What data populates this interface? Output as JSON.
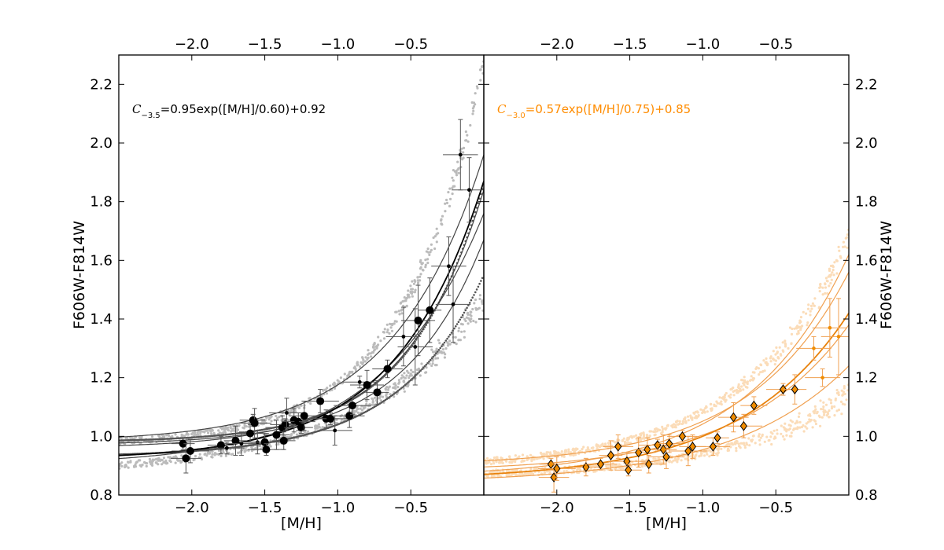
{
  "chart_data": [
    {
      "type": "scatter",
      "panel": "left",
      "xlabel": "[M/H]",
      "ylabel": "F606W-F814W",
      "xlim": [
        -2.5,
        0.0
      ],
      "ylim": [
        0.8,
        2.3
      ],
      "xticks": [
        -2.0,
        -1.5,
        -1.0,
        -0.5
      ],
      "xtick_labels": [
        "−2.0",
        "−1.5",
        "−1.0",
        "−0.5"
      ],
      "yticks": [
        0.8,
        1.0,
        1.2,
        1.4,
        1.6,
        1.8,
        2.0,
        2.2
      ],
      "ytick_labels": [
        "0.8",
        "1.0",
        "1.2",
        "1.4",
        "1.6",
        "1.8",
        "2.0",
        "2.2"
      ],
      "annotation": {
        "symbol": "C",
        "subscript": "−3.5",
        "text": "=0.95exp([M/H]/0.60)+0.92",
        "color": "#000000"
      },
      "fit": {
        "a": 0.95,
        "b": 0.6,
        "c": 0.92,
        "color": "#000000"
      },
      "aux_curves": [
        {
          "a": 0.88,
          "b": 0.54,
          "c": 0.96,
          "color": "#444444"
        },
        {
          "a": 0.98,
          "b": 0.62,
          "c": 0.98,
          "color": "#444444"
        },
        {
          "a": 0.86,
          "b": 0.7,
          "c": 0.9,
          "color": "#444444"
        },
        {
          "a": 0.7,
          "b": 0.55,
          "c": 0.97,
          "color": "#444444"
        }
      ],
      "grey_bands": [
        {
          "a": 1.3,
          "b": 0.55,
          "c": 0.97,
          "color": "#bbbbbb"
        },
        {
          "a": 0.6,
          "b": 0.85,
          "c": 0.87,
          "color": "#bbbbbb"
        }
      ],
      "step_curves": [
        {
          "a": 0.88,
          "b": 0.5,
          "c": 0.98,
          "color": "#555555"
        },
        {
          "a": 0.62,
          "b": 0.58,
          "c": 0.93,
          "color": "#555555"
        }
      ],
      "points": [
        {
          "x": -2.06,
          "y": 0.975,
          "size": "big"
        },
        {
          "x": -2.04,
          "y": 0.925,
          "size": "big"
        },
        {
          "x": -2.01,
          "y": 0.95,
          "size": "big"
        },
        {
          "x": -1.8,
          "y": 0.97,
          "size": "big"
        },
        {
          "x": -1.76,
          "y": 0.96,
          "size": "small"
        },
        {
          "x": -1.7,
          "y": 0.985,
          "size": "big"
        },
        {
          "x": -1.66,
          "y": 0.975,
          "size": "small"
        },
        {
          "x": -1.6,
          "y": 1.01,
          "size": "big"
        },
        {
          "x": -1.58,
          "y": 1.055,
          "size": "big"
        },
        {
          "x": -1.57,
          "y": 1.045,
          "size": "big"
        },
        {
          "x": -1.55,
          "y": 0.98,
          "size": "small"
        },
        {
          "x": -1.5,
          "y": 0.98,
          "size": "big"
        },
        {
          "x": -1.49,
          "y": 0.955,
          "size": "big"
        },
        {
          "x": -1.42,
          "y": 1.005,
          "size": "big"
        },
        {
          "x": -1.38,
          "y": 1.03,
          "size": "big"
        },
        {
          "x": -1.37,
          "y": 0.985,
          "size": "big"
        },
        {
          "x": -1.36,
          "y": 1.04,
          "size": "big"
        },
        {
          "x": -1.35,
          "y": 1.08,
          "size": "small"
        },
        {
          "x": -1.3,
          "y": 1.055,
          "size": "big"
        },
        {
          "x": -1.27,
          "y": 1.05,
          "size": "big"
        },
        {
          "x": -1.25,
          "y": 1.03,
          "size": "big"
        },
        {
          "x": -1.23,
          "y": 1.07,
          "size": "big"
        },
        {
          "x": -1.12,
          "y": 1.12,
          "size": "big"
        },
        {
          "x": -1.08,
          "y": 1.06,
          "size": "big"
        },
        {
          "x": -1.05,
          "y": 1.06,
          "size": "big"
        },
        {
          "x": -1.02,
          "y": 1.02,
          "size": "small"
        },
        {
          "x": -0.92,
          "y": 1.07,
          "size": "big"
        },
        {
          "x": -0.9,
          "y": 1.105,
          "size": "big"
        },
        {
          "x": -0.85,
          "y": 1.185,
          "size": "small"
        },
        {
          "x": -0.8,
          "y": 1.175,
          "size": "big"
        },
        {
          "x": -0.73,
          "y": 1.15,
          "size": "big"
        },
        {
          "x": -0.66,
          "y": 1.23,
          "size": "big"
        },
        {
          "x": -0.55,
          "y": 1.34,
          "size": "small"
        },
        {
          "x": -0.47,
          "y": 1.305,
          "size": "small"
        },
        {
          "x": -0.45,
          "y": 1.395,
          "size": "big"
        },
        {
          "x": -0.37,
          "y": 1.43,
          "size": "big"
        },
        {
          "x": -0.24,
          "y": 1.58,
          "size": "small"
        },
        {
          "x": -0.21,
          "y": 1.45,
          "size": "small"
        },
        {
          "x": -0.16,
          "y": 1.96,
          "size": "small"
        },
        {
          "x": -0.1,
          "y": 1.84,
          "size": "small"
        }
      ]
    },
    {
      "type": "scatter",
      "panel": "right",
      "xlabel": "[M/H]",
      "ylabel": "F606W-F814W",
      "xlim": [
        -2.5,
        0.0
      ],
      "ylim": [
        0.8,
        2.3
      ],
      "xticks": [
        -2.0,
        -1.5,
        -1.0,
        -0.5
      ],
      "xtick_labels": [
        "−2.0",
        "−1.5",
        "−1.0",
        "−0.5"
      ],
      "yticks": [
        0.8,
        1.0,
        1.2,
        1.4,
        1.6,
        1.8,
        2.0,
        2.2
      ],
      "ytick_labels": [
        "0.8",
        "1.0",
        "1.2",
        "1.4",
        "1.6",
        "1.8",
        "2.0",
        "2.2"
      ],
      "annotation": {
        "symbol": "C",
        "subscript": "−3.0",
        "text": "=0.57exp([M/H]/0.75)+0.85",
        "color": "#ff8c00"
      },
      "fit": {
        "a": 0.57,
        "b": 0.75,
        "c": 0.85,
        "color": "#e8820c"
      },
      "aux_curves": [
        {
          "a": 0.66,
          "b": 0.68,
          "c": 0.9,
          "color": "#f0a050"
        },
        {
          "a": 0.76,
          "b": 0.7,
          "c": 0.86,
          "color": "#f0a050"
        },
        {
          "a": 0.5,
          "b": 0.72,
          "c": 0.88,
          "color": "#f0a050"
        },
        {
          "a": 0.4,
          "b": 0.8,
          "c": 0.84,
          "color": "#f0a050"
        }
      ],
      "grey_bands": [
        {
          "a": 0.78,
          "b": 0.72,
          "c": 0.89,
          "color": "#fbdcb8"
        },
        {
          "a": 0.28,
          "b": 0.8,
          "c": 0.86,
          "color": "#fbdcb8"
        }
      ],
      "step_curves": [],
      "points": [
        {
          "x": -2.04,
          "y": 0.905,
          "size": "big"
        },
        {
          "x": -2.02,
          "y": 0.86,
          "size": "big"
        },
        {
          "x": -2.0,
          "y": 0.89,
          "size": "big"
        },
        {
          "x": -1.8,
          "y": 0.895,
          "size": "big"
        },
        {
          "x": -1.7,
          "y": 0.905,
          "size": "big"
        },
        {
          "x": -1.63,
          "y": 0.935,
          "size": "big"
        },
        {
          "x": -1.58,
          "y": 0.965,
          "size": "big"
        },
        {
          "x": -1.52,
          "y": 0.915,
          "size": "big"
        },
        {
          "x": -1.51,
          "y": 0.885,
          "size": "big"
        },
        {
          "x": -1.44,
          "y": 0.945,
          "size": "big"
        },
        {
          "x": -1.38,
          "y": 0.955,
          "size": "big"
        },
        {
          "x": -1.37,
          "y": 0.905,
          "size": "big"
        },
        {
          "x": -1.31,
          "y": 0.97,
          "size": "big"
        },
        {
          "x": -1.27,
          "y": 0.955,
          "size": "big"
        },
        {
          "x": -1.25,
          "y": 0.93,
          "size": "big"
        },
        {
          "x": -1.23,
          "y": 0.975,
          "size": "big"
        },
        {
          "x": -1.14,
          "y": 1.0,
          "size": "big"
        },
        {
          "x": -1.1,
          "y": 0.95,
          "size": "big"
        },
        {
          "x": -1.07,
          "y": 0.965,
          "size": "big"
        },
        {
          "x": -0.93,
          "y": 0.965,
          "size": "big"
        },
        {
          "x": -0.9,
          "y": 0.995,
          "size": "big"
        },
        {
          "x": -0.79,
          "y": 1.065,
          "size": "big"
        },
        {
          "x": -0.72,
          "y": 1.035,
          "size": "big"
        },
        {
          "x": -0.65,
          "y": 1.105,
          "size": "big"
        },
        {
          "x": -0.45,
          "y": 1.16,
          "size": "big"
        },
        {
          "x": -0.37,
          "y": 1.16,
          "size": "big"
        },
        {
          "x": -0.24,
          "y": 1.3,
          "size": "small"
        },
        {
          "x": -0.18,
          "y": 1.2,
          "size": "small"
        },
        {
          "x": -0.13,
          "y": 1.37,
          "size": "small"
        },
        {
          "x": -0.07,
          "y": 1.34,
          "size": "small"
        }
      ]
    }
  ]
}
